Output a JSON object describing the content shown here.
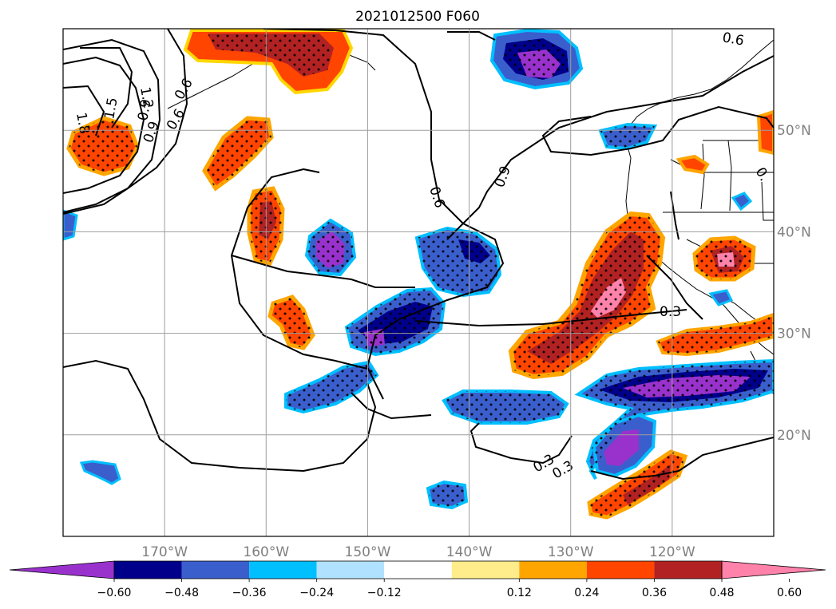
{
  "title": "2021012500 F060",
  "chart_data": {
    "type": "contour-map",
    "title": "2021012500 F060",
    "map": {
      "lon_range": [
        -180,
        -110
      ],
      "lat_range": [
        10,
        60
      ],
      "grid": true,
      "lon_ticks": [
        {
          "value": -170,
          "label": "170°W"
        },
        {
          "value": -160,
          "label": "160°W"
        },
        {
          "value": -150,
          "label": "150°W"
        },
        {
          "value": -140,
          "label": "140°W"
        },
        {
          "value": -130,
          "label": "130°W"
        },
        {
          "value": -120,
          "label": "120°W"
        }
      ],
      "lat_ticks": [
        {
          "value": 50,
          "label": "50°N"
        },
        {
          "value": 40,
          "label": "40°N"
        },
        {
          "value": 30,
          "label": "30°N"
        },
        {
          "value": 20,
          "label": "20°N"
        }
      ]
    },
    "colorbar": {
      "orientation": "horizontal",
      "extend": "both",
      "ticks": [
        {
          "value": -0.6,
          "label": "−0.60"
        },
        {
          "value": -0.48,
          "label": "−0.48"
        },
        {
          "value": -0.36,
          "label": "−0.36"
        },
        {
          "value": -0.24,
          "label": "−0.24"
        },
        {
          "value": -0.12,
          "label": "−0.12"
        },
        {
          "value": 0.12,
          "label": "0.12"
        },
        {
          "value": 0.24,
          "label": "0.24"
        },
        {
          "value": 0.36,
          "label": "0.36"
        },
        {
          "value": 0.48,
          "label": "0.48"
        },
        {
          "value": 0.6,
          "label": "0.60"
        }
      ],
      "bins": [
        {
          "from": null,
          "to": -0.66,
          "color": "#9932cc"
        },
        {
          "from": -0.66,
          "to": -0.54,
          "color": "#00008b"
        },
        {
          "from": -0.54,
          "to": -0.42,
          "color": "#3a5fcd"
        },
        {
          "from": -0.42,
          "to": -0.3,
          "color": "#00bfff"
        },
        {
          "from": -0.3,
          "to": -0.18,
          "color": "#b0e2ff"
        },
        {
          "from": -0.18,
          "to": 0.18,
          "color": "#ffffff"
        },
        {
          "from": 0.18,
          "to": 0.3,
          "color": "#ffec8b"
        },
        {
          "from": 0.3,
          "to": 0.42,
          "color": "#ffa500"
        },
        {
          "from": 0.42,
          "to": 0.54,
          "color": "#ff4500"
        },
        {
          "from": 0.54,
          "to": 0.66,
          "color": "#b22222"
        },
        {
          "from": 0.66,
          "to": null,
          "color": "#ff82ab"
        }
      ]
    },
    "contour_levels": [
      "0.3",
      "0.6",
      "0.9",
      "1.2",
      "1.5",
      "1.8",
      "0.6",
      "0.9",
      "0.6",
      "0.9",
      "0.3",
      "0.3",
      "0.6",
      "0."
    ],
    "hatching": "dots over shaded anomalies"
  }
}
